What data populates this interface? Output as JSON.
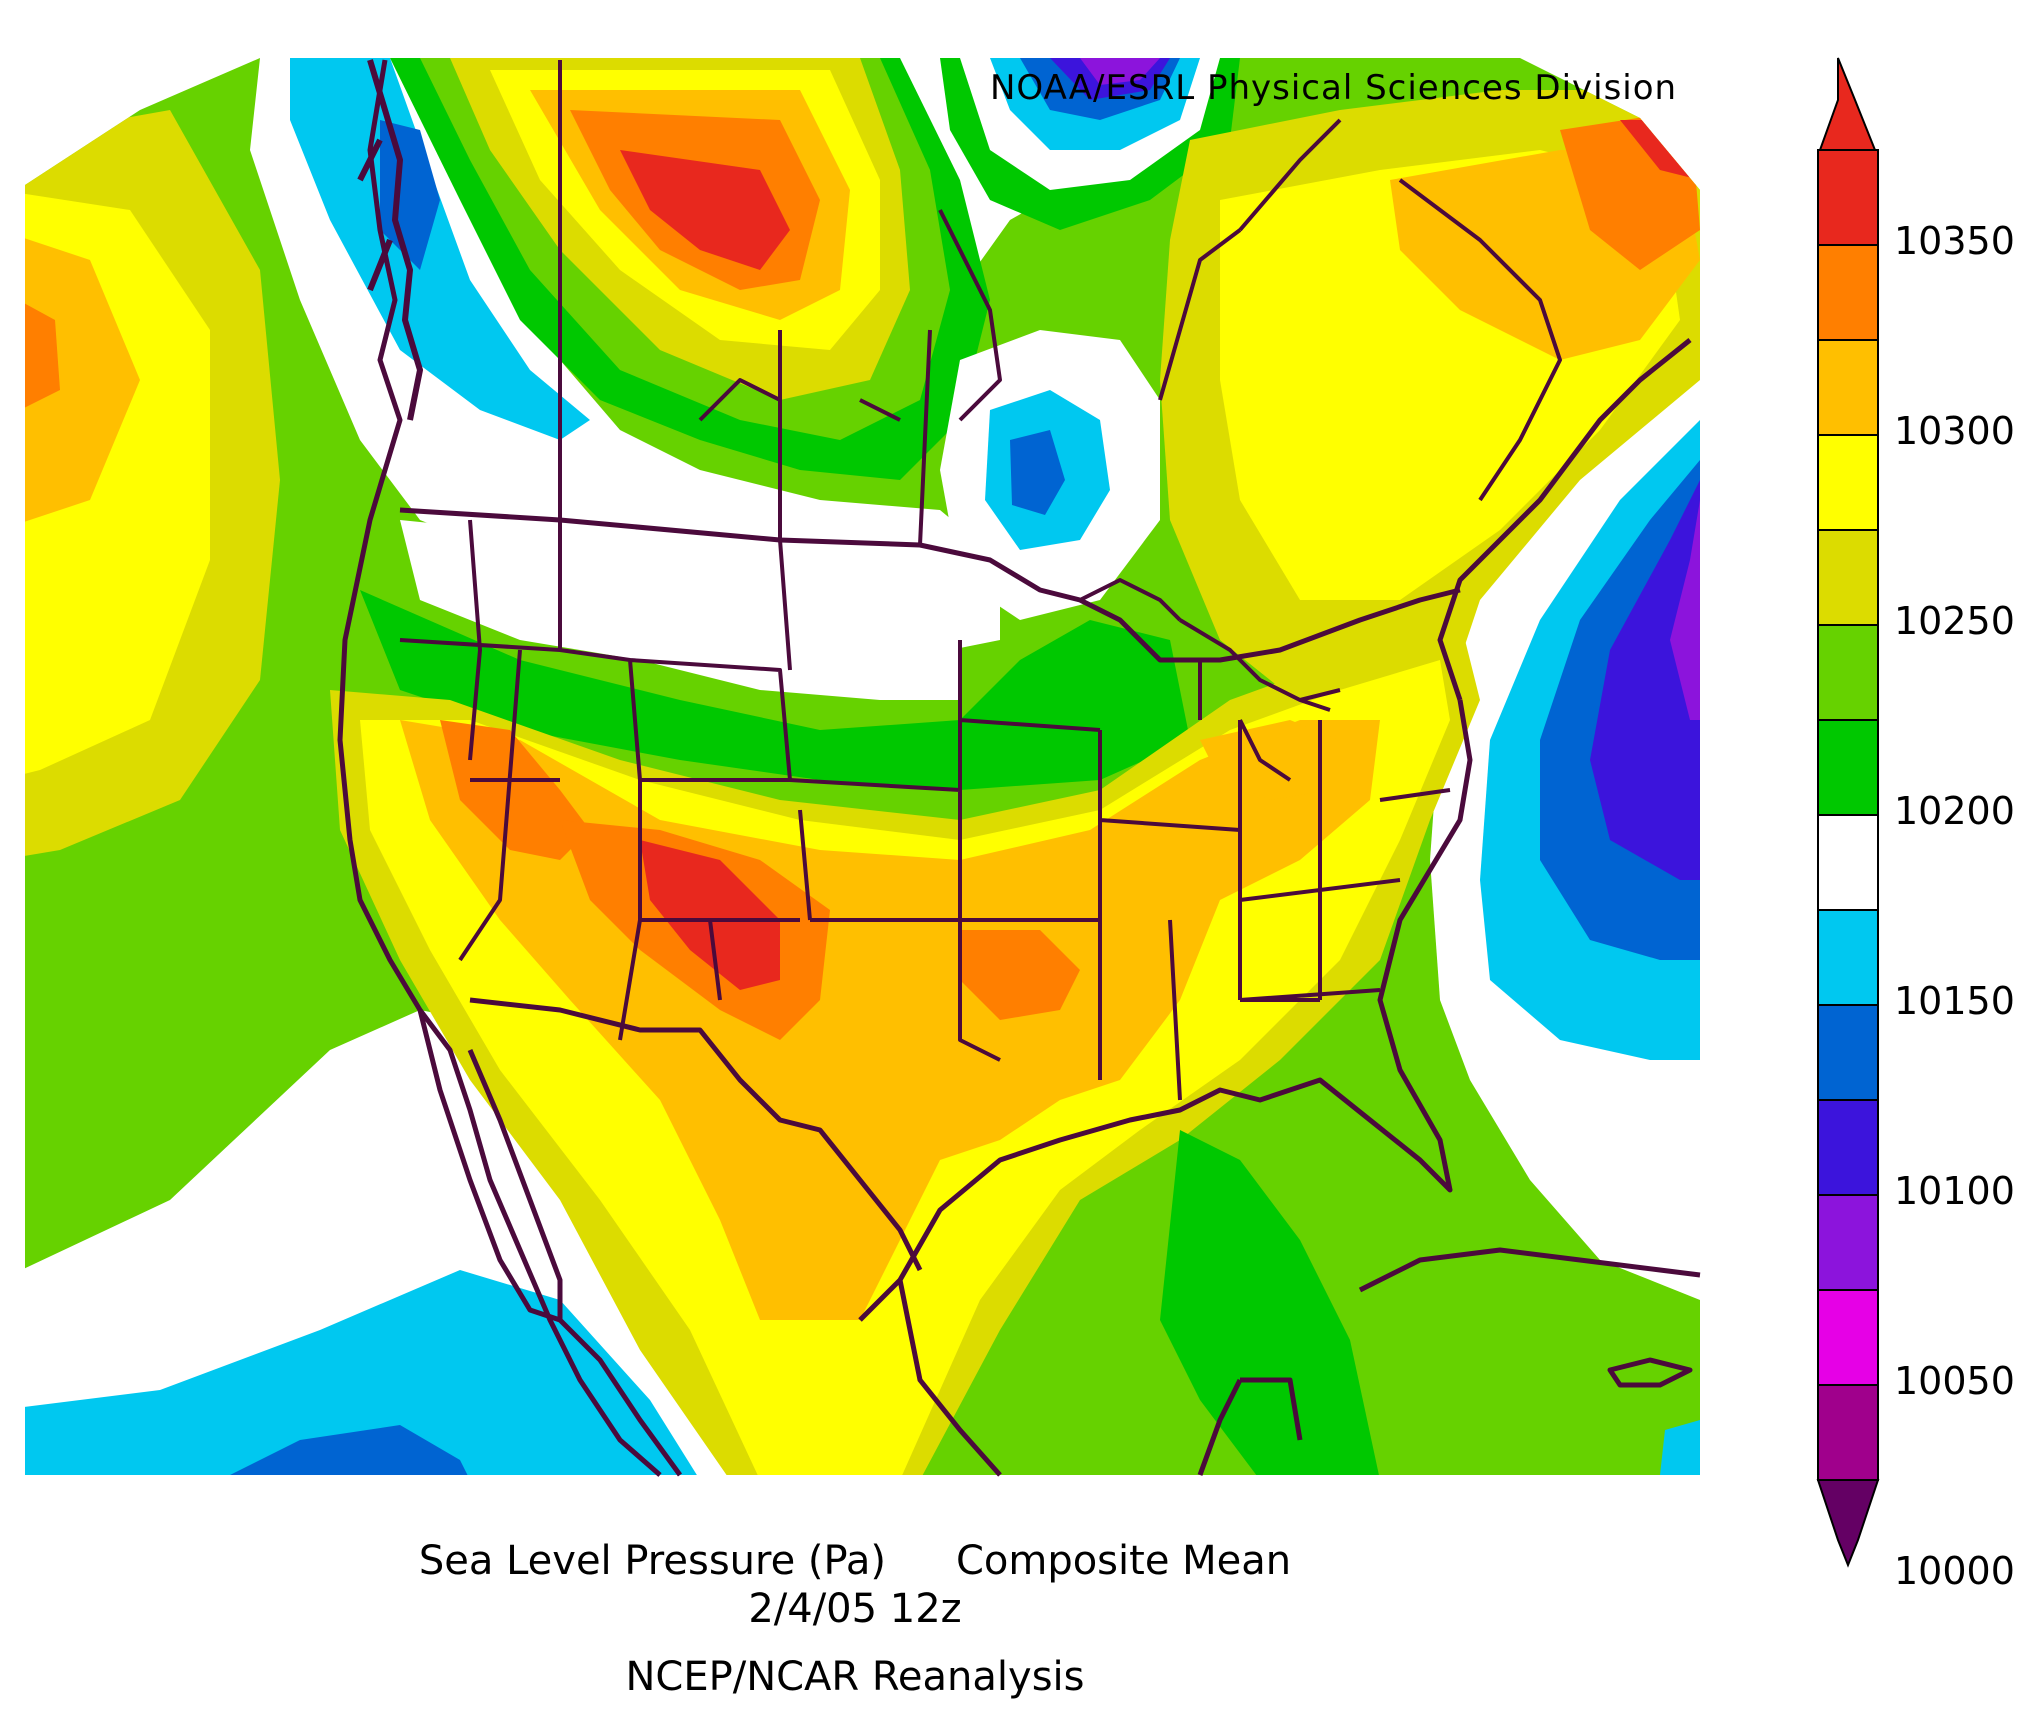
{
  "credit": "NOAA/ESRL Physical Sciences Division",
  "caption": {
    "variable": "Sea Level Pressure (Pa)",
    "statistic": "Composite Mean",
    "date": "2/4/05 12z",
    "source": "NCEP/NCAR Reanalysis"
  },
  "colorbar": {
    "ticks": [
      "10350",
      "10300",
      "10250",
      "10200",
      "10150",
      "10100",
      "10050",
      "10000"
    ],
    "colors": [
      "#e8281e",
      "#ff7f00",
      "#ffbf00",
      "#ffff00",
      "#dcdc00",
      "#66d200",
      "#00c800",
      "#ffffff",
      "#00c8f0",
      "#0064d2",
      "#3c14dc",
      "#8c14dc",
      "#e600e6",
      "#a0008c"
    ],
    "top_arrow_color": "#e8281e",
    "bottom_arrow_color": "#640064"
  },
  "map": {
    "land_border_color": "#4b0a3c",
    "palette": {
      "red": "#e8281e",
      "orange": "#ff7f00",
      "light_orange": "#ffbf00",
      "yellow": "#ffff00",
      "olive_yellow": "#dcdc00",
      "light_green": "#66d200",
      "green": "#00c800",
      "white": "#ffffff",
      "cyan": "#00c8f0",
      "blue": "#0064d2",
      "indigo": "#3c14dc",
      "purple": "#8c14dc"
    }
  }
}
